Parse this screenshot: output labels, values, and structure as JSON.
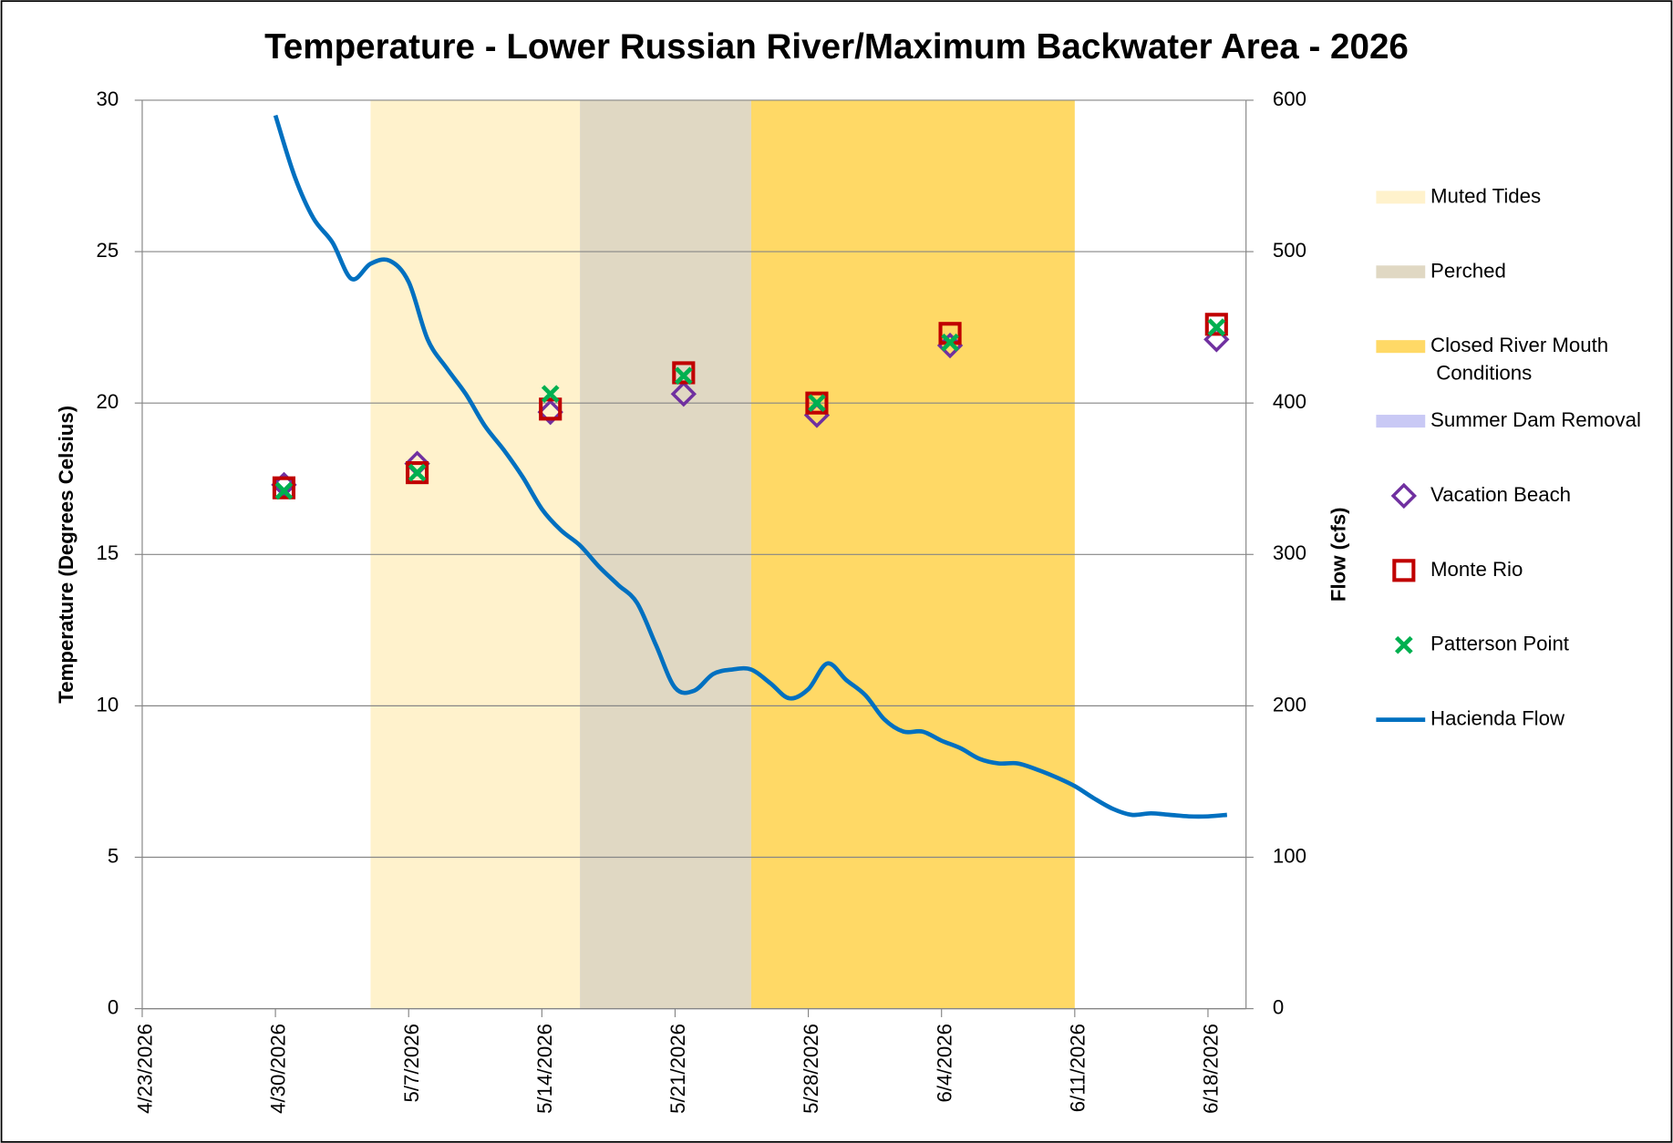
{
  "chart_data": {
    "type": "scatter",
    "title": "Temperature - Lower Russian River/Maximum Backwater Area - 2026",
    "ylabel": "Temperature (Degrees Celsius)",
    "y2label": "Flow (cfs)",
    "xlim": [
      "4/23/2026",
      "6/20/2026"
    ],
    "xticks": [
      "4/23/2026",
      "4/30/2026",
      "5/7/2026",
      "5/14/2026",
      "5/21/2026",
      "5/28/2026",
      "6/4/2026",
      "6/11/2026",
      "6/18/2026"
    ],
    "ylim": [
      0,
      30
    ],
    "yticks": [
      0,
      5,
      10,
      15,
      20,
      25,
      30
    ],
    "y2lim": [
      0,
      600
    ],
    "y2ticks": [
      0,
      100,
      200,
      300,
      400,
      500,
      600
    ],
    "grid": true,
    "legend": "right",
    "regions": [
      {
        "name": "Muted Tides",
        "color": "#FFF2CC",
        "start": "5/5/2026",
        "end": "5/16/2026"
      },
      {
        "name": "Perched",
        "color": "#E0D8C3",
        "start": "5/16/2026",
        "end": "5/25/2026"
      },
      {
        "name": "Closed River Mouth Conditions",
        "color": "#FFD966",
        "start": "5/25/2026",
        "end": "6/11/2026"
      },
      {
        "name": "Summer Dam Removal",
        "color": "#C9C9F5",
        "start": null,
        "end": null
      }
    ],
    "x": [
      "4/30/2026",
      "5/7/2026",
      "5/14/2026",
      "5/21/2026",
      "5/28/2026",
      "6/4/2026",
      "6/18/2026"
    ],
    "series": [
      {
        "name": "Vacation Beach",
        "color": "#7030A0",
        "marker": "diamond",
        "values": [
          17.3,
          18.0,
          19.7,
          20.3,
          19.6,
          21.9,
          22.1
        ]
      },
      {
        "name": "Monte Rio",
        "color": "#C00000",
        "marker": "square",
        "values": [
          17.2,
          17.7,
          19.8,
          21.0,
          20.0,
          22.3,
          22.6
        ]
      },
      {
        "name": "Patterson Point",
        "color": "#00B050",
        "marker": "x",
        "values": [
          17.1,
          17.7,
          20.3,
          20.9,
          20.0,
          22.0,
          22.5
        ]
      }
    ],
    "line": {
      "name": "Hacienda Flow",
      "color": "#0070C0",
      "axis": "y2",
      "x": [
        "4/30/2026",
        "5/1/2026",
        "5/2/2026",
        "5/3/2026",
        "5/4/2026",
        "5/5/2026",
        "5/6/2026",
        "5/7/2026",
        "5/8/2026",
        "5/9/2026",
        "5/10/2026",
        "5/11/2026",
        "5/12/2026",
        "5/13/2026",
        "5/14/2026",
        "5/15/2026",
        "5/16/2026",
        "5/17/2026",
        "5/18/2026",
        "5/19/2026",
        "5/20/2026",
        "5/21/2026",
        "5/22/2026",
        "5/23/2026",
        "5/24/2026",
        "5/25/2026",
        "5/26/2026",
        "5/27/2026",
        "5/28/2026",
        "5/29/2026",
        "5/30/2026",
        "5/31/2026",
        "6/1/2026",
        "6/2/2026",
        "6/3/2026",
        "6/4/2026",
        "6/5/2026",
        "6/6/2026",
        "6/7/2026",
        "6/8/2026",
        "6/9/2026",
        "6/10/2026",
        "6/11/2026",
        "6/12/2026",
        "6/13/2026",
        "6/14/2026",
        "6/15/2026",
        "6/16/2026",
        "6/17/2026",
        "6/18/2026",
        "6/19/2026"
      ],
      "values": [
        590,
        550,
        522,
        506,
        482,
        492,
        494,
        480,
        442,
        423,
        406,
        385,
        369,
        351,
        330,
        316,
        306,
        292,
        280,
        268,
        240,
        212,
        210,
        221,
        224,
        224,
        215,
        205,
        211,
        228,
        217,
        207,
        191,
        183,
        183,
        177,
        172,
        165,
        162,
        162,
        158,
        153,
        147,
        139,
        132,
        128,
        129,
        128,
        127,
        127,
        128
      ]
    }
  }
}
